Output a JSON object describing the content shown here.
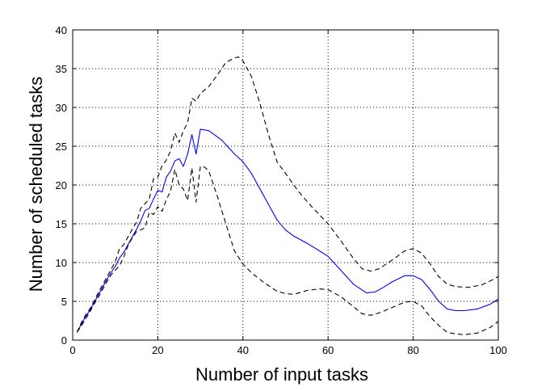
{
  "chart_data": {
    "type": "line",
    "title": "",
    "xlabel": "Number of input tasks",
    "ylabel": "Number of scheduled tasks",
    "xlim": [
      0,
      100
    ],
    "ylim": [
      0,
      40
    ],
    "xticks": [
      0,
      20,
      40,
      60,
      80,
      100
    ],
    "yticks": [
      0,
      5,
      10,
      15,
      20,
      25,
      30,
      35,
      40
    ],
    "grid": true,
    "legend": "none",
    "series": [
      {
        "style": "solid",
        "color": "#0000ff",
        "points": [
          [
            1,
            1
          ],
          [
            2,
            2
          ],
          [
            3,
            3
          ],
          [
            4,
            3.8
          ],
          [
            5,
            4.8
          ],
          [
            6,
            5.8
          ],
          [
            7,
            6.8
          ],
          [
            8,
            7.8
          ],
          [
            9,
            8.7
          ],
          [
            10,
            9.5
          ],
          [
            11,
            10.6
          ],
          [
            12,
            11.3
          ],
          [
            13,
            12.3
          ],
          [
            14,
            13.3
          ],
          [
            15,
            14.3
          ],
          [
            16,
            15.4
          ],
          [
            17,
            16.7
          ],
          [
            18,
            17
          ],
          [
            19,
            18.2
          ],
          [
            20,
            19.3
          ],
          [
            21,
            19.1
          ],
          [
            22,
            21
          ],
          [
            23,
            21.8
          ],
          [
            24,
            23.1
          ],
          [
            25,
            23.4
          ],
          [
            26,
            22.4
          ],
          [
            27,
            24
          ],
          [
            28,
            26.5
          ],
          [
            29,
            24
          ],
          [
            30,
            27.2
          ],
          [
            32,
            27
          ],
          [
            35,
            25.8
          ],
          [
            38,
            24
          ],
          [
            40,
            23
          ],
          [
            42,
            21.5
          ],
          [
            44,
            19.5
          ],
          [
            46,
            17.5
          ],
          [
            48,
            15.5
          ],
          [
            50,
            14.2
          ],
          [
            52,
            13.4
          ],
          [
            55,
            12.5
          ],
          [
            58,
            11.5
          ],
          [
            60,
            10.8
          ],
          [
            63,
            9
          ],
          [
            66,
            7.2
          ],
          [
            69,
            6.1
          ],
          [
            71,
            6.2
          ],
          [
            73,
            6.8
          ],
          [
            75,
            7.5
          ],
          [
            78,
            8.3
          ],
          [
            80,
            8.3
          ],
          [
            82,
            7.8
          ],
          [
            84,
            6.5
          ],
          [
            86,
            5
          ],
          [
            88,
            4
          ],
          [
            90,
            3.8
          ],
          [
            92,
            3.8
          ],
          [
            95,
            4
          ],
          [
            98,
            4.6
          ],
          [
            100,
            5.3
          ]
        ]
      },
      {
        "style": "dashed",
        "color": "#000000",
        "points": [
          [
            1,
            1
          ],
          [
            2,
            2.2
          ],
          [
            3,
            3.2
          ],
          [
            4,
            4
          ],
          [
            5,
            5
          ],
          [
            6,
            6.1
          ],
          [
            7,
            7.1
          ],
          [
            8,
            8.1
          ],
          [
            9,
            9.1
          ],
          [
            10,
            10.1
          ],
          [
            11,
            11.8
          ],
          [
            12,
            12.3
          ],
          [
            13,
            13.3
          ],
          [
            14,
            14.3
          ],
          [
            15,
            15.2
          ],
          [
            16,
            17
          ],
          [
            17,
            17.6
          ],
          [
            18,
            18.2
          ],
          [
            19,
            20.8
          ],
          [
            20,
            21
          ],
          [
            21,
            22.5
          ],
          [
            22,
            23.2
          ],
          [
            23,
            24.4
          ],
          [
            24,
            26.7
          ],
          [
            25,
            25.5
          ],
          [
            26,
            27
          ],
          [
            27,
            28
          ],
          [
            28,
            31.2
          ],
          [
            29,
            30.8
          ],
          [
            30,
            31.8
          ],
          [
            32,
            32.7
          ],
          [
            34,
            34.2
          ],
          [
            36,
            35.8
          ],
          [
            38,
            36.4
          ],
          [
            39,
            36.5
          ],
          [
            40,
            36
          ],
          [
            42,
            34
          ],
          [
            44,
            30.5
          ],
          [
            46,
            26.5
          ],
          [
            48,
            23
          ],
          [
            50,
            21.5
          ],
          [
            53,
            19.2
          ],
          [
            56,
            17.3
          ],
          [
            60,
            15
          ],
          [
            63,
            12.8
          ],
          [
            66,
            10.5
          ],
          [
            68,
            9.2
          ],
          [
            70,
            8.9
          ],
          [
            72,
            9.2
          ],
          [
            75,
            10.3
          ],
          [
            78,
            11.5
          ],
          [
            80,
            11.8
          ],
          [
            82,
            11.2
          ],
          [
            84,
            9.8
          ],
          [
            86,
            8.2
          ],
          [
            88,
            7.2
          ],
          [
            90,
            6.9
          ],
          [
            93,
            6.8
          ],
          [
            96,
            7.1
          ],
          [
            98,
            7.6
          ],
          [
            100,
            8.2
          ]
        ]
      },
      {
        "style": "dashed",
        "color": "#000000",
        "points": [
          [
            1,
            1
          ],
          [
            2,
            1.8
          ],
          [
            3,
            2.7
          ],
          [
            4,
            3.6
          ],
          [
            5,
            4.6
          ],
          [
            6,
            5.5
          ],
          [
            7,
            6.5
          ],
          [
            8,
            7.5
          ],
          [
            9,
            8.4
          ],
          [
            10,
            9
          ],
          [
            11,
            9.6
          ],
          [
            12,
            10.7
          ],
          [
            13,
            12.2
          ],
          [
            14,
            13.2
          ],
          [
            15,
            14
          ],
          [
            16,
            14.2
          ],
          [
            17,
            14.5
          ],
          [
            18,
            16.5
          ],
          [
            19,
            16.2
          ],
          [
            20,
            17.2
          ],
          [
            21,
            16.6
          ],
          [
            22,
            18.1
          ],
          [
            23,
            19.2
          ],
          [
            24,
            22
          ],
          [
            25,
            20
          ],
          [
            26,
            19.5
          ],
          [
            27,
            18
          ],
          [
            28,
            22.2
          ],
          [
            29,
            17.8
          ],
          [
            30,
            22.4
          ],
          [
            31,
            22.3
          ],
          [
            32,
            21.8
          ],
          [
            34,
            18.5
          ],
          [
            36,
            15
          ],
          [
            38,
            11.5
          ],
          [
            40,
            9.8
          ],
          [
            42,
            8.7
          ],
          [
            45,
            7.4
          ],
          [
            48,
            6.3
          ],
          [
            50,
            6
          ],
          [
            52,
            5.9
          ],
          [
            55,
            6.4
          ],
          [
            58,
            6.6
          ],
          [
            60,
            6.5
          ],
          [
            63,
            5.6
          ],
          [
            66,
            4.3
          ],
          [
            68,
            3.4
          ],
          [
            70,
            3.2
          ],
          [
            72,
            3.5
          ],
          [
            75,
            4.2
          ],
          [
            78,
            4.9
          ],
          [
            80,
            5
          ],
          [
            82,
            4.4
          ],
          [
            84,
            3
          ],
          [
            86,
            1.9
          ],
          [
            88,
            1
          ],
          [
            90,
            0.8
          ],
          [
            92,
            0.7
          ],
          [
            95,
            0.9
          ],
          [
            98,
            1.6
          ],
          [
            100,
            2.4
          ]
        ]
      }
    ]
  }
}
